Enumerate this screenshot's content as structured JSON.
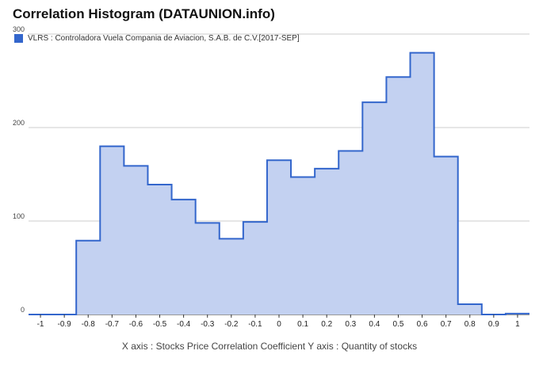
{
  "chart_data": {
    "type": "area",
    "title": "Correlation Histogram (DATAUNION.info)",
    "series": [
      {
        "name": "VLRS : Controladora Vuela Compania de Aviacion, S.A.B. de C.V.[2017-SEP]",
        "color": "#3366cc",
        "fill": "#c3d1f1",
        "x": [
          -1,
          -0.9,
          -0.8,
          -0.7,
          -0.6,
          -0.5,
          -0.4,
          -0.3,
          -0.2,
          -0.1,
          0,
          0.1,
          0.2,
          0.3,
          0.4,
          0.5,
          0.6,
          0.7,
          0.8,
          0.9,
          1
        ],
        "values": [
          0,
          0,
          79,
          180,
          159,
          139,
          123,
          98,
          81,
          99,
          165,
          147,
          156,
          175,
          227,
          254,
          280,
          169,
          11,
          0,
          1
        ]
      }
    ],
    "xticks": [
      "-1",
      "-0.9",
      "-0.8",
      "-0.7",
      "-0.6",
      "-0.5",
      "-0.4",
      "-0.3",
      "-0.2",
      "-0.1",
      "0",
      "0.1",
      "0.2",
      "0.3",
      "0.4",
      "0.5",
      "0.6",
      "0.7",
      "0.8",
      "0.9",
      "1"
    ],
    "yticks": [
      "0",
      "100",
      "200",
      "300"
    ],
    "ylim": [
      0,
      300
    ],
    "xlim": [
      -1.05,
      1.05
    ],
    "grid": true,
    "legend_position": "top-left",
    "footer": "X axis : Stocks Price Correlation Coefficient  Y axis : Quantity of stocks"
  }
}
